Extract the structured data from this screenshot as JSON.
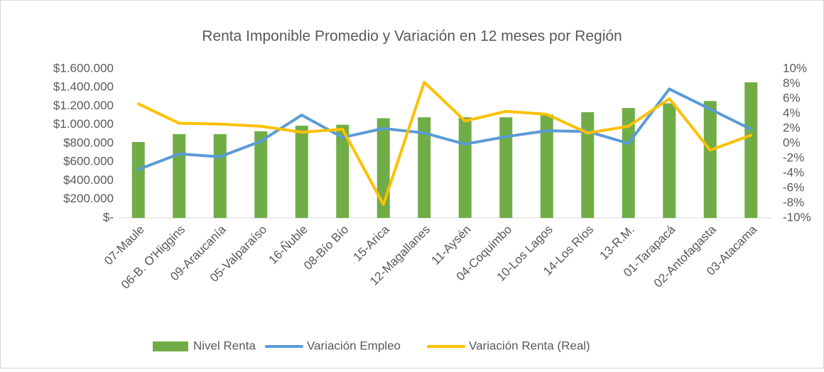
{
  "chart_data": {
    "type": "bar-line",
    "title": "Renta Imponible Promedio y Variación en 12 meses por Región",
    "categories": [
      "07-Maule",
      "06-B. O'Higgins",
      "09-Araucanía",
      "05-Valparaíso",
      "16-Ñuble",
      "08-Bío Bío",
      "15-Arica",
      "12-Magallanes",
      "11-Aysén",
      "04-Coquimbo",
      "10-Los Lagos",
      "14-Los Ríos",
      "13-R.M.",
      "01-Tarapacá",
      "02-Antofagasta",
      "03-Atacama"
    ],
    "series": [
      {
        "name": "Nivel Renta",
        "type": "bar",
        "color": "#70ad47",
        "axis": "y",
        "values": [
          815000,
          900000,
          900000,
          930000,
          990000,
          1000000,
          1070000,
          1080000,
          1080000,
          1080000,
          1110000,
          1135000,
          1180000,
          1230000,
          1255000,
          1455000
        ]
      },
      {
        "name": "Variación Empleo",
        "type": "line",
        "color": "#5b9bd5",
        "axis": "y2",
        "values": [
          -3.5,
          -1.4,
          -1.8,
          0.3,
          3.8,
          0.8,
          2.0,
          1.4,
          -0.1,
          0.9,
          1.7,
          1.6,
          0,
          7.3,
          4.6,
          1.9
        ]
      },
      {
        "name": "Variación Renta (Real)",
        "type": "line",
        "color": "#ffc000",
        "axis": "y2",
        "values": [
          5.3,
          2.7,
          2.6,
          2.3,
          1.5,
          1.9,
          -8.2,
          8.2,
          3.0,
          4.3,
          3.9,
          1.4,
          2.3,
          6.0,
          -0.9,
          1.1
        ]
      }
    ],
    "ylim": [
      0,
      1600000
    ],
    "yticks": [
      {
        "value": 0,
        "label": "$-"
      },
      {
        "value": 200000,
        "label": "$200.000"
      },
      {
        "value": 400000,
        "label": "$400.000"
      },
      {
        "value": 600000,
        "label": "$600.000"
      },
      {
        "value": 800000,
        "label": "$800.000"
      },
      {
        "value": 1000000,
        "label": "$1.000.000"
      },
      {
        "value": 1200000,
        "label": "$1.200.000"
      },
      {
        "value": 1400000,
        "label": "$1.400.000"
      },
      {
        "value": 1600000,
        "label": "$1.600.000"
      }
    ],
    "y2lim": [
      -10,
      10
    ],
    "y2ticks": [
      {
        "value": -10,
        "label": "-10%"
      },
      {
        "value": -8,
        "label": "-8%"
      },
      {
        "value": -6,
        "label": "-6%"
      },
      {
        "value": -4,
        "label": "-4%"
      },
      {
        "value": -2,
        "label": "-2%"
      },
      {
        "value": 0,
        "label": "0%"
      },
      {
        "value": 2,
        "label": "2%"
      },
      {
        "value": 4,
        "label": "4%"
      },
      {
        "value": 6,
        "label": "6%"
      },
      {
        "value": 8,
        "label": "8%"
      },
      {
        "value": 10,
        "label": "10%"
      }
    ],
    "legend": "bottom"
  }
}
